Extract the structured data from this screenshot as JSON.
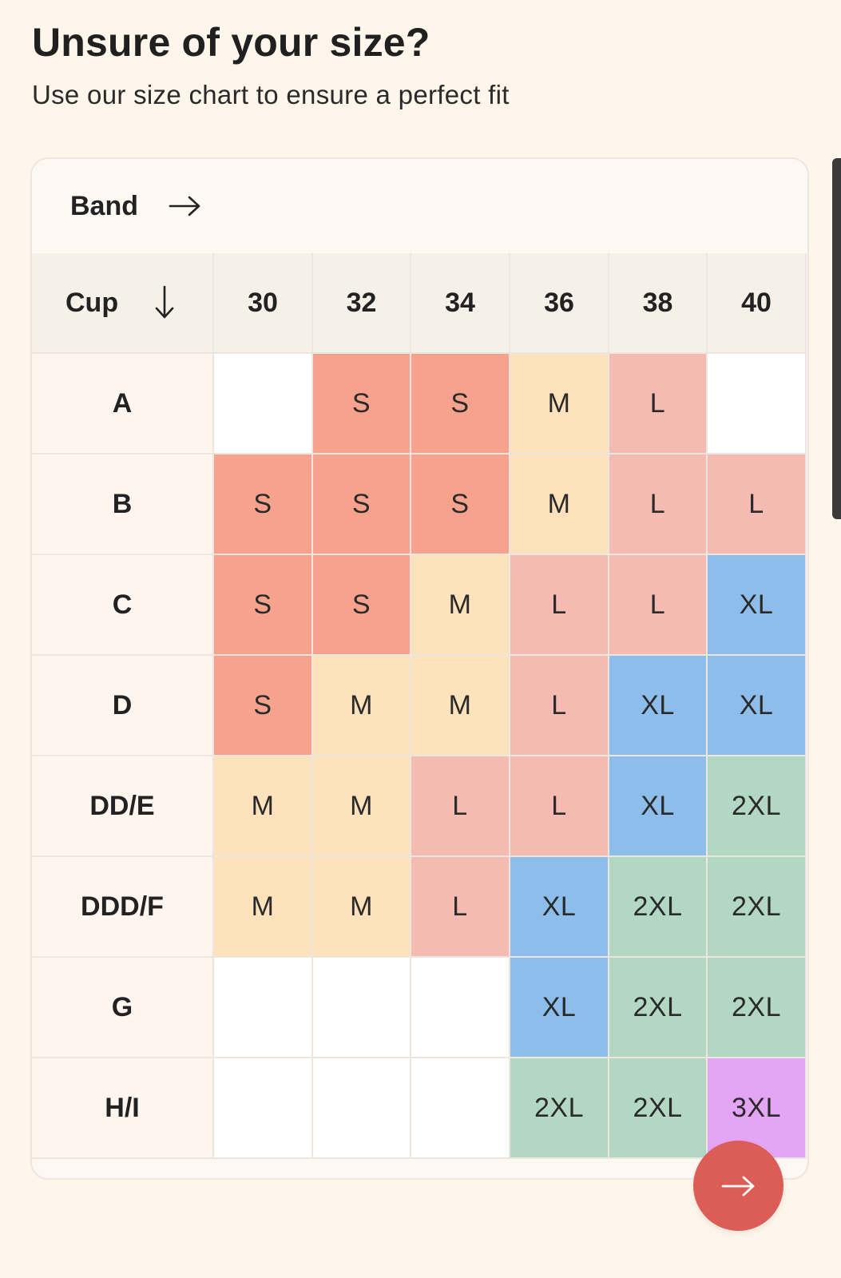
{
  "header": {
    "title": "Unsure of your size?",
    "subtitle": "Use our size chart to ensure a perfect fit"
  },
  "chart": {
    "band_label": "Band",
    "cup_label": "Cup",
    "band_arrow_icon": "arrow-right-icon",
    "cup_arrow_icon": "arrow-down-icon",
    "bands": [
      "30",
      "32",
      "34",
      "36",
      "38",
      "40"
    ],
    "rows": [
      {
        "cup": "A",
        "sizes": [
          "",
          "S",
          "S",
          "M",
          "L",
          ""
        ]
      },
      {
        "cup": "B",
        "sizes": [
          "S",
          "S",
          "S",
          "M",
          "L",
          "L"
        ]
      },
      {
        "cup": "C",
        "sizes": [
          "S",
          "S",
          "M",
          "L",
          "L",
          "XL"
        ]
      },
      {
        "cup": "D",
        "sizes": [
          "S",
          "M",
          "M",
          "L",
          "XL",
          "XL"
        ]
      },
      {
        "cup": "DD/E",
        "sizes": [
          "M",
          "M",
          "L",
          "L",
          "XL",
          "2XL"
        ]
      },
      {
        "cup": "DDD/F",
        "sizes": [
          "M",
          "M",
          "L",
          "XL",
          "2XL",
          "2XL"
        ]
      },
      {
        "cup": "G",
        "sizes": [
          "",
          "",
          "",
          "XL",
          "2XL",
          "2XL"
        ]
      },
      {
        "cup": "H/I",
        "sizes": [
          "",
          "",
          "",
          "2XL",
          "2XL",
          "3XL"
        ]
      }
    ]
  },
  "size_colors": {
    "S": "#f6a28d",
    "M": "#fde2bb",
    "L": "#f5bbb2",
    "XL": "#8dbdea",
    "2XL": "#b2d8c4",
    "3XL": "#e5a5f5",
    "empty": "#ffffff"
  },
  "fab": {
    "icon": "arrow-right-icon",
    "color": "#dc5d58"
  }
}
